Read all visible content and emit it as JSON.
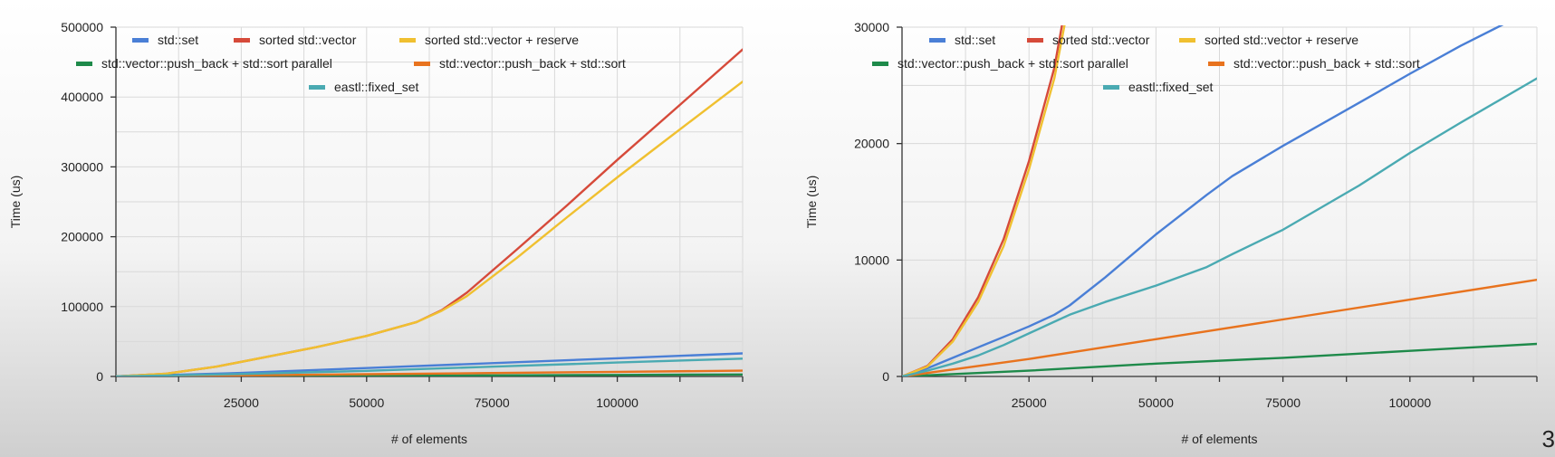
{
  "slide_number": "3",
  "chart_data": [
    {
      "type": "line",
      "xlabel": "# of elements",
      "ylabel": "Time (us)",
      "xlim": [
        0,
        125000
      ],
      "ylim": [
        0,
        500000
      ],
      "x_ticks": [
        25000,
        50000,
        75000,
        100000
      ],
      "y_ticks": [
        0,
        100000,
        200000,
        300000,
        400000,
        500000
      ],
      "grid": true,
      "legend": "top",
      "series": [
        {
          "name": "std::set",
          "color": "#4a7fd6",
          "x": [
            0,
            25000,
            50000,
            75000,
            100000,
            125000
          ],
          "y": [
            0,
            5000,
            12000,
            19000,
            26000,
            33000
          ]
        },
        {
          "name": "sorted std::vector",
          "color": "#d64a3a",
          "x": [
            0,
            10000,
            20000,
            30000,
            40000,
            50000,
            60000,
            65000,
            70000,
            80000,
            90000,
            100000,
            110000,
            125000
          ],
          "y": [
            0,
            4000,
            14000,
            28000,
            42000,
            58000,
            78000,
            95000,
            120000,
            182000,
            245000,
            310000,
            373000,
            468000
          ]
        },
        {
          "name": "sorted std::vector + reserve",
          "color": "#f0c030",
          "x": [
            0,
            10000,
            20000,
            30000,
            40000,
            50000,
            60000,
            65000,
            70000,
            80000,
            90000,
            100000,
            110000,
            125000
          ],
          "y": [
            0,
            4000,
            14000,
            28000,
            42000,
            58000,
            78000,
            94000,
            115000,
            170000,
            228000,
            285000,
            340000,
            422000
          ]
        },
        {
          "name": "std::vector::push_back + std::sort parallel",
          "color": "#1e8a4a",
          "x": [
            0,
            25000,
            50000,
            75000,
            100000,
            125000
          ],
          "y": [
            0,
            500,
            1100,
            1600,
            2200,
            2800
          ]
        },
        {
          "name": "std::vector::push_back + std::sort",
          "color": "#e8731e",
          "x": [
            0,
            25000,
            50000,
            75000,
            100000,
            125000
          ],
          "y": [
            0,
            1500,
            3200,
            4900,
            6600,
            8300
          ]
        },
        {
          "name": "eastl::fixed_set",
          "color": "#4aaab2",
          "x": [
            0,
            25000,
            50000,
            75000,
            100000,
            125000
          ],
          "y": [
            0,
            3500,
            8000,
            14000,
            20000,
            25500
          ]
        }
      ]
    },
    {
      "type": "line",
      "xlabel": "# of elements",
      "ylabel": "Time (us)",
      "xlim": [
        0,
        125000
      ],
      "ylim": [
        0,
        30000
      ],
      "x_ticks": [
        25000,
        50000,
        75000,
        100000
      ],
      "y_ticks": [
        0,
        10000,
        20000,
        30000
      ],
      "grid": true,
      "legend": "top",
      "series": [
        {
          "name": "std::set",
          "color": "#4a7fd6",
          "x": [
            0,
            5000,
            10000,
            15000,
            20000,
            25000,
            30000,
            33000,
            40000,
            50000,
            60000,
            65000,
            75000,
            90000,
            100000,
            110000,
            120000
          ],
          "y": [
            0,
            700,
            1600,
            2500,
            3400,
            4300,
            5300,
            6100,
            8500,
            12200,
            15600,
            17200,
            19800,
            23500,
            26000,
            28400,
            30600
          ]
        },
        {
          "name": "sorted std::vector",
          "color": "#d64a3a",
          "x": [
            0,
            5000,
            10000,
            15000,
            20000,
            25000,
            30000,
            31500
          ],
          "y": [
            0,
            900,
            3200,
            6800,
            11800,
            18500,
            26500,
            30200
          ]
        },
        {
          "name": "sorted std::vector + reserve",
          "color": "#f0c030",
          "x": [
            0,
            5000,
            10000,
            15000,
            20000,
            25000,
            30000,
            32000
          ],
          "y": [
            0,
            850,
            3000,
            6400,
            11200,
            17800,
            25600,
            30200
          ]
        },
        {
          "name": "std::vector::push_back + std::sort parallel",
          "color": "#1e8a4a",
          "x": [
            0,
            25000,
            50000,
            75000,
            100000,
            125000
          ],
          "y": [
            0,
            500,
            1100,
            1600,
            2200,
            2800
          ]
        },
        {
          "name": "std::vector::push_back + std::sort",
          "color": "#e8731e",
          "x": [
            0,
            25000,
            50000,
            75000,
            100000,
            125000
          ],
          "y": [
            0,
            1500,
            3200,
            4900,
            6600,
            8300
          ]
        },
        {
          "name": "eastl::fixed_set",
          "color": "#4aaab2",
          "x": [
            0,
            5000,
            10000,
            15000,
            20000,
            25000,
            30000,
            33000,
            40000,
            50000,
            60000,
            65000,
            75000,
            90000,
            100000,
            110000,
            125000
          ],
          "y": [
            0,
            500,
            1100,
            1800,
            2700,
            3700,
            4700,
            5300,
            6400,
            7800,
            9400,
            10500,
            12600,
            16400,
            19200,
            21800,
            25600
          ]
        }
      ]
    }
  ]
}
